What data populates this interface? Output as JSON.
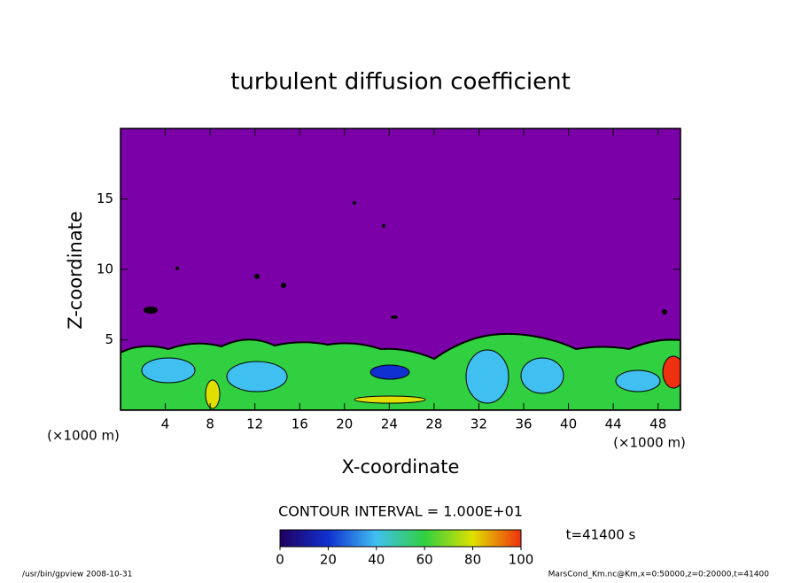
{
  "chart_data": {
    "type": "contour",
    "title": "turbulent diffusion coefficient",
    "xlabel": "X-coordinate",
    "ylabel": "Z-coordinate",
    "x_unit": "(×1000 m)",
    "x_unit_right": "(×1000 m)",
    "xlim": [
      0,
      50
    ],
    "xticks": [
      4,
      8,
      12,
      16,
      20,
      24,
      28,
      32,
      36,
      40,
      44,
      48
    ],
    "ylim": [
      0,
      20
    ],
    "yticks": [
      5,
      10,
      15
    ],
    "colorbar": {
      "lim": [
        0,
        100
      ],
      "ticks": [
        0,
        20,
        40,
        60,
        80,
        100
      ],
      "colors": [
        "#200060",
        "#1030d0",
        "#40c0f0",
        "#30d040",
        "#e0e000",
        "#f03010"
      ]
    },
    "background_color": "#7b00a8",
    "contour_note": "CONTOUR INTERVAL = 1.000E+01",
    "time_note": "t=41400 s",
    "footer_left": "/usr/bin/gpview  2008-10-31",
    "footer_right": "MarsCond_Km.nc@Km,x=0:50000,z=0:20000,t=41400"
  }
}
